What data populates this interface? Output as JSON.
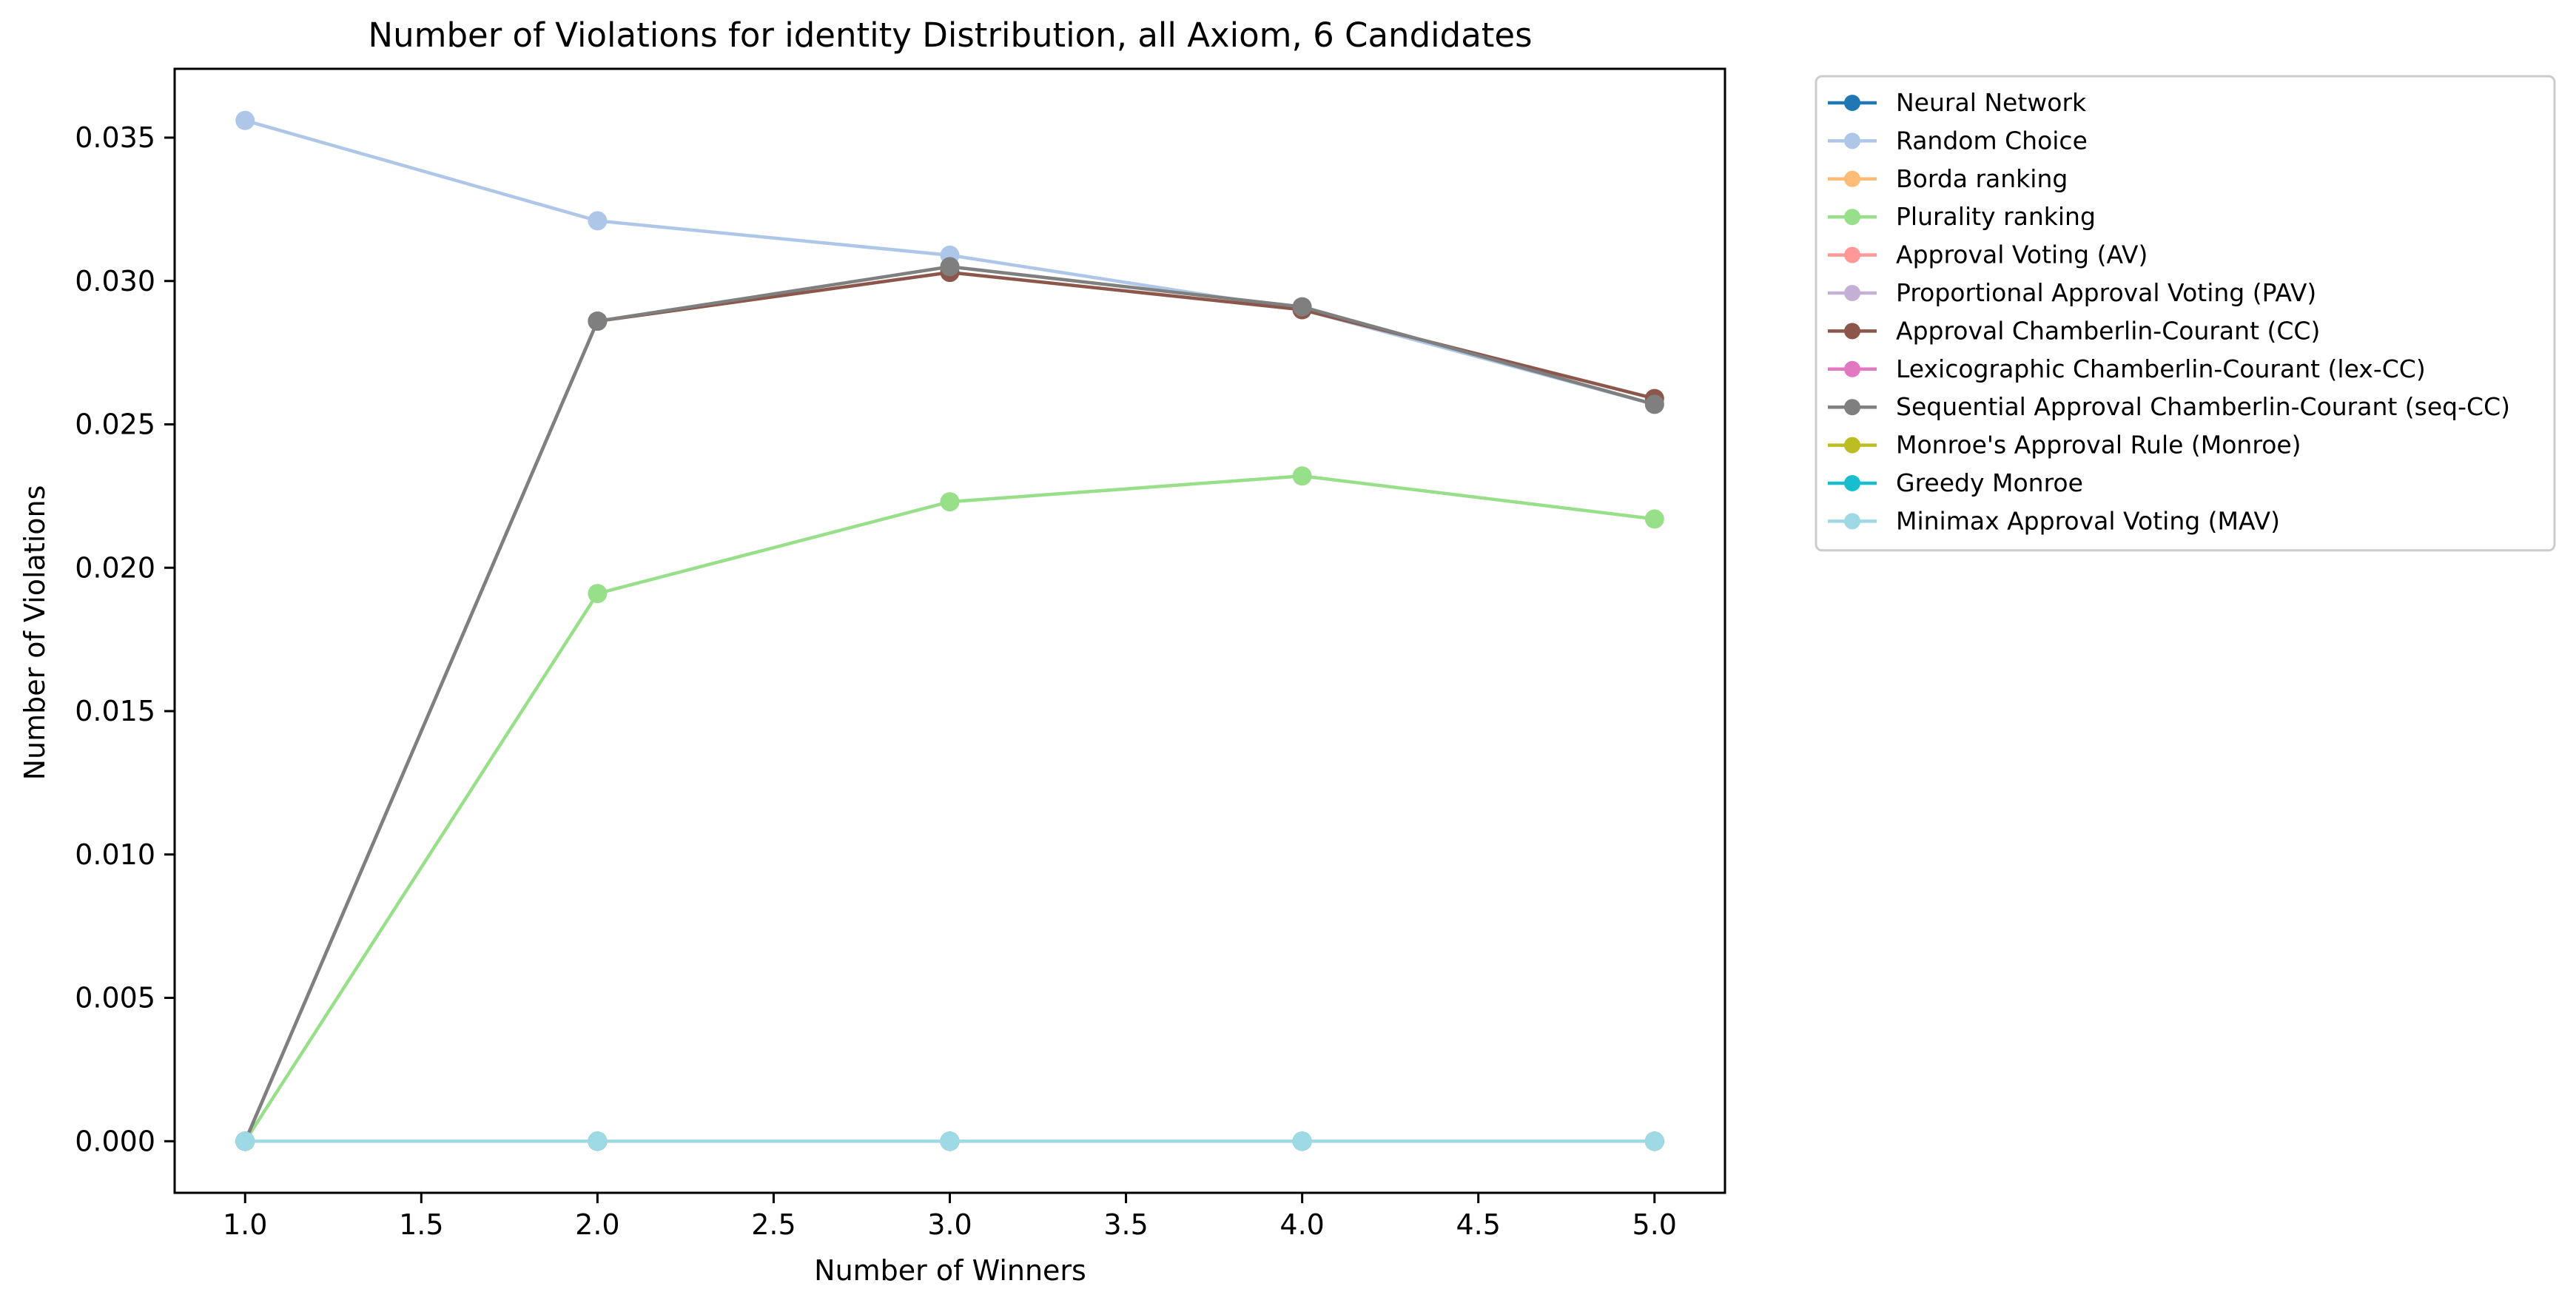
{
  "chart_data": {
    "type": "line",
    "title": "Number of Violations for identity Distribution, all Axiom, 6 Candidates",
    "xlabel": "Number of Winners",
    "ylabel": "Number of Violations",
    "x": [
      1.0,
      2.0,
      3.0,
      4.0,
      5.0
    ],
    "xlim": [
      0.8,
      5.2
    ],
    "ylim": [
      -0.0018,
      0.0374
    ],
    "xticks": [
      "1.0",
      "1.5",
      "2.0",
      "2.5",
      "3.0",
      "3.5",
      "4.0",
      "4.5",
      "5.0"
    ],
    "yticks": [
      "0.000",
      "0.005",
      "0.010",
      "0.015",
      "0.020",
      "0.025",
      "0.030",
      "0.035"
    ],
    "grid": false,
    "legend_position": "outside-top-right",
    "series": [
      {
        "name": "Neural Network",
        "color": "#1f77b4",
        "values": [
          0.0,
          0.0,
          0.0,
          0.0,
          0.0
        ]
      },
      {
        "name": "Random Choice",
        "color": "#aec7e8",
        "values": [
          0.0356,
          0.0321,
          0.0309,
          0.029,
          0.0257
        ]
      },
      {
        "name": "Borda ranking",
        "color": "#ffbb78",
        "values": [
          0.0,
          0.0,
          0.0,
          0.0,
          0.0
        ]
      },
      {
        "name": "Plurality ranking",
        "color": "#98df8a",
        "values": [
          0.0,
          0.0191,
          0.0223,
          0.0232,
          0.0217
        ]
      },
      {
        "name": "Approval Voting (AV)",
        "color": "#ff9896",
        "values": [
          0.0,
          0.0,
          0.0,
          0.0,
          0.0
        ]
      },
      {
        "name": "Proportional Approval Voting (PAV)",
        "color": "#c5b0d5",
        "values": [
          0.0,
          0.0,
          0.0,
          0.0,
          0.0
        ]
      },
      {
        "name": "Approval Chamberlin-Courant (CC)",
        "color": "#8c564b",
        "values": [
          0.0,
          0.0286,
          0.0303,
          0.029,
          0.0259
        ]
      },
      {
        "name": "Lexicographic Chamberlin-Courant (lex-CC)",
        "color": "#e377c2",
        "values": [
          0.0,
          0.0,
          0.0,
          0.0,
          0.0
        ]
      },
      {
        "name": "Sequential Approval Chamberlin-Courant (seq-CC)",
        "color": "#7f7f7f",
        "values": [
          0.0,
          0.0286,
          0.0305,
          0.0291,
          0.0257
        ]
      },
      {
        "name": "Monroe's Approval Rule (Monroe)",
        "color": "#bcbd22",
        "values": [
          0.0,
          0.0,
          0.0,
          0.0,
          0.0
        ]
      },
      {
        "name": "Greedy Monroe",
        "color": "#17becf",
        "values": [
          0.0,
          0.0,
          0.0,
          0.0,
          0.0
        ]
      },
      {
        "name": "Minimax Approval Voting (MAV)",
        "color": "#9edae5",
        "values": [
          0.0,
          0.0,
          0.0,
          0.0,
          0.0
        ]
      }
    ]
  }
}
